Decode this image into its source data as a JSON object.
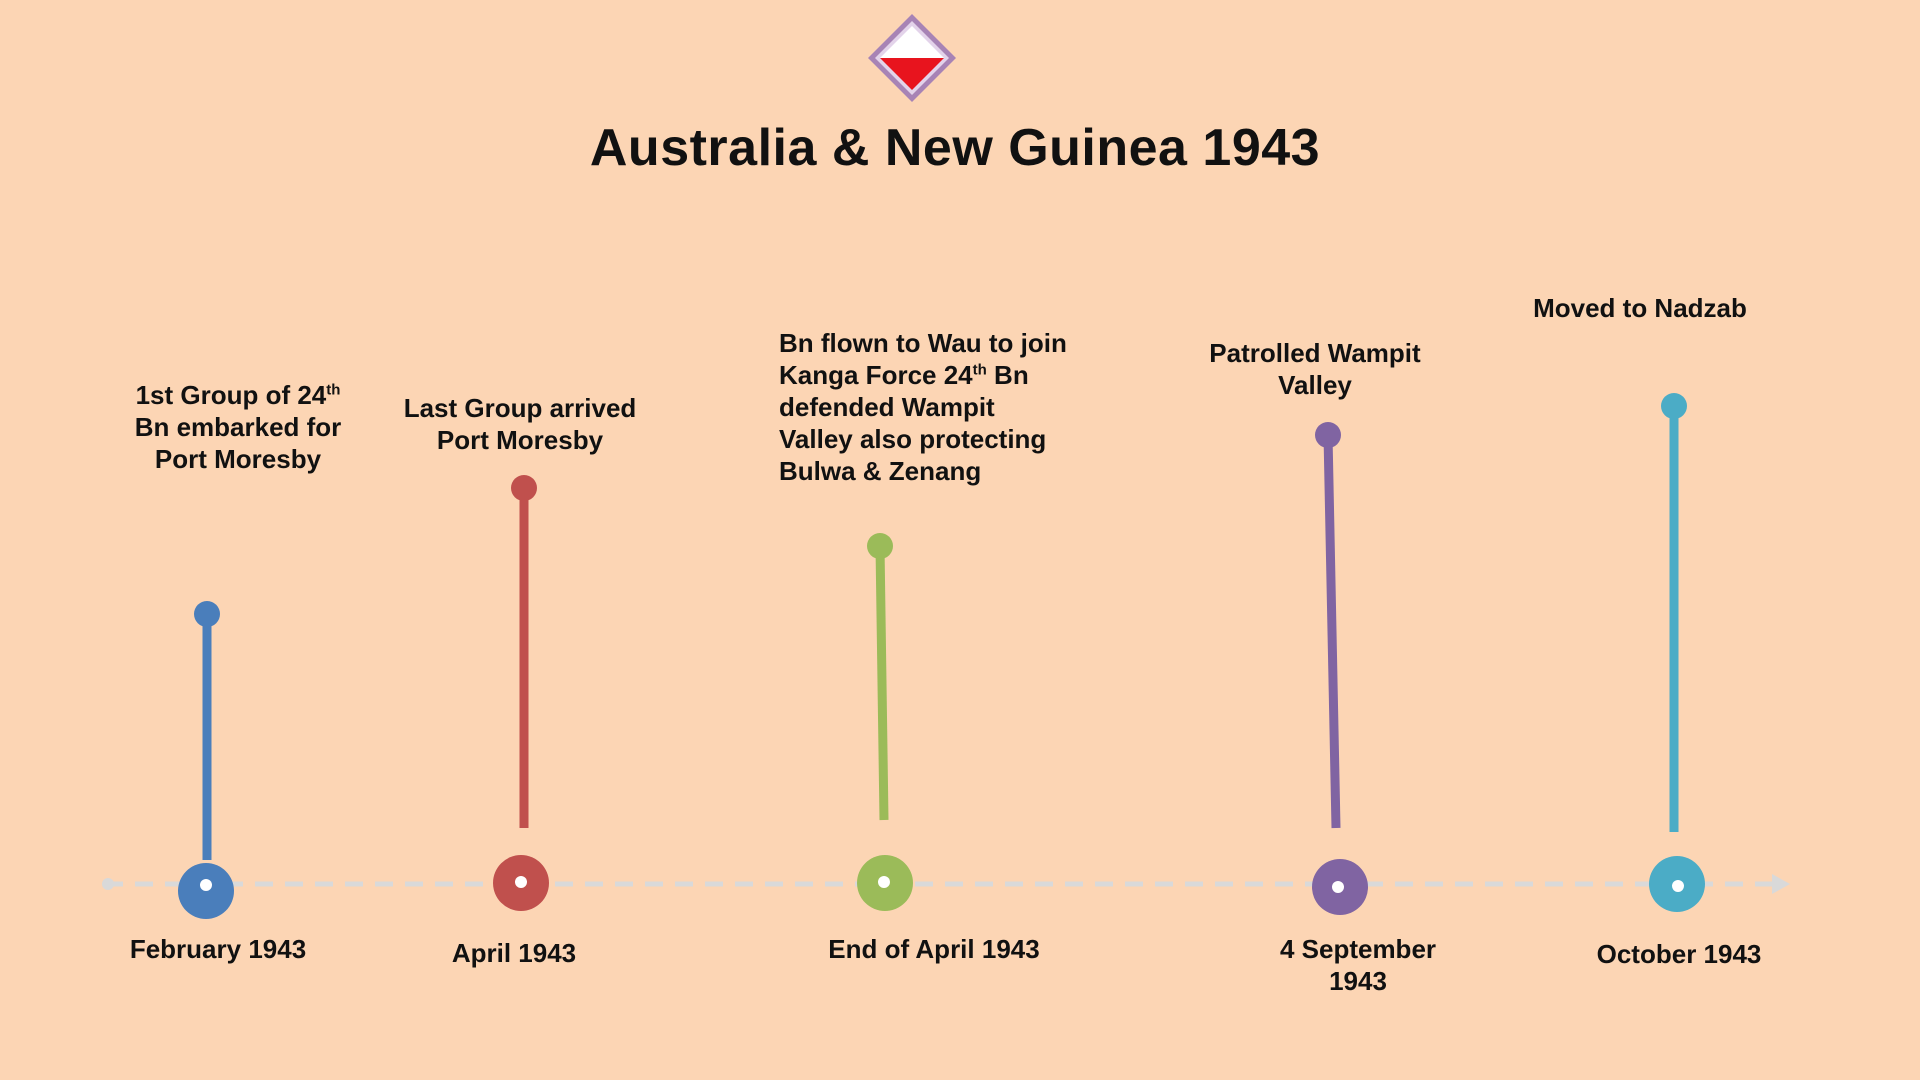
{
  "title": "Australia & New Guinea 1943",
  "emblem": {
    "icon": "diamond-unit-patch-icon",
    "colors": {
      "border": "#a783b5",
      "top": "#ffffff",
      "bottom": "#e8141e"
    }
  },
  "events": [
    {
      "date": "February 1943",
      "label_parts": [
        "1st Group of 24",
        "Bn embarked for",
        "Port Moresby"
      ],
      "sup": "th",
      "color": "#4a7ebb"
    },
    {
      "date": "April 1943",
      "label_parts": [
        "Last Group arrived",
        "Port Moresby"
      ],
      "color": "#c0504d"
    },
    {
      "date": "End of April 1943",
      "label_parts": [
        "Bn flown to Wau to join",
        "Kanga Force 24",
        " Bn",
        "defended Wampit",
        "Valley also protecting",
        "Bulwa & Zenang"
      ],
      "sup": "th",
      "color": "#9bbb59"
    },
    {
      "date_lines": [
        "4 September",
        "1943"
      ],
      "label_parts": [
        "Patrolled Wampit",
        "Valley"
      ],
      "color": "#8064a2"
    },
    {
      "date": "October 1943",
      "label_parts": [
        "Moved to Nadzab"
      ],
      "color": "#4bacc6"
    }
  ]
}
